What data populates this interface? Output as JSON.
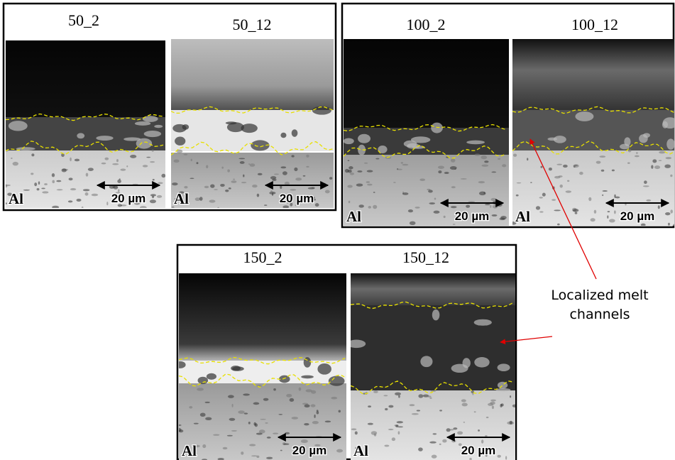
{
  "panels": [
    {
      "label": "50_2",
      "substrate": "Al",
      "scale_bar": "20 µm"
    },
    {
      "label": "50_12",
      "substrate": "Al",
      "scale_bar": "20 µm"
    },
    {
      "label": "100_2",
      "substrate": "Al",
      "scale_bar": "20 µm"
    },
    {
      "label": "100_12",
      "substrate": "Al",
      "scale_bar": "20 µm"
    },
    {
      "label": "150_2",
      "substrate": "Al",
      "scale_bar": "20 µm"
    },
    {
      "label": "150_12",
      "substrate": "Al",
      "scale_bar": "20 µm"
    }
  ],
  "annotation": {
    "lines": [
      "Localized melt",
      "channels"
    ]
  }
}
